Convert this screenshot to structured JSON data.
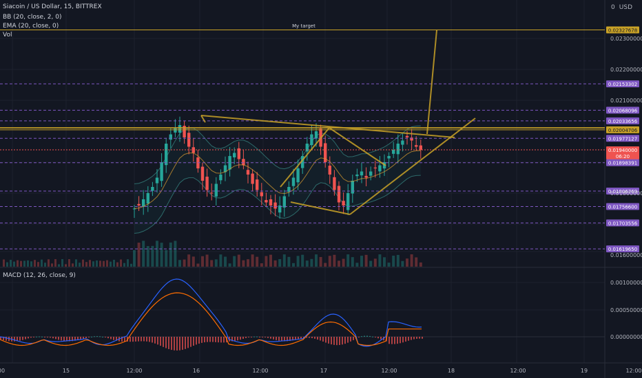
{
  "header": {
    "symbol": "Siacoin / US Dollar, 15, BITTREX",
    "bb": "BB (20, close, 2, 0)",
    "ema": "EMA (20, close, 0)",
    "vol": "Vol",
    "currency": "USD",
    "zero": "0"
  },
  "annotation": {
    "target": "My target"
  },
  "macd": {
    "title": "MACD (12, 26, close, 9)"
  },
  "chart_data": {
    "type": "candlestick",
    "price_axis": {
      "ticks": [
        "0.02300000",
        "0.02200000",
        "0.02100000",
        "0.01800000",
        "0.01600000"
      ],
      "levels": [
        {
          "value": "0.02327678",
          "kind": "target",
          "color": "#c9a227"
        },
        {
          "value": "0.02153302",
          "kind": "level",
          "color": "#7e57c2"
        },
        {
          "value": "0.02068096",
          "kind": "level",
          "color": "#7e57c2"
        },
        {
          "value": "0.02033656",
          "kind": "level",
          "color": "#7e57c2"
        },
        {
          "value": "0.02004706",
          "kind": "resistance",
          "color": "#c9a227"
        },
        {
          "value": "0.01977127",
          "kind": "level",
          "color": "#7e57c2"
        },
        {
          "value": "0.01940000",
          "kind": "last",
          "color": "#ef5350"
        },
        {
          "value": "0.01898391",
          "kind": "level",
          "color": "#7e57c2"
        },
        {
          "value": "0.01806769",
          "kind": "level",
          "color": "#7e57c2"
        },
        {
          "value": "0.01756600",
          "kind": "level",
          "color": "#7e57c2"
        },
        {
          "value": "0.01703556",
          "kind": "level",
          "color": "#7e57c2"
        },
        {
          "value": "0.01619650",
          "kind": "level",
          "color": "#7e57c2"
        }
      ],
      "countdown": "06:20"
    },
    "macd_axis": {
      "ticks": [
        "0.00100000",
        "0.00050000",
        "0.00000000"
      ]
    },
    "time_axis": [
      "00",
      "15",
      "12:00",
      "16",
      "12:00",
      "17",
      "12:00",
      "18",
      "12:00",
      "19",
      "12:00"
    ],
    "close_series": [
      0.0175,
      0.0176,
      0.0178,
      0.018,
      0.0182,
      0.0185,
      0.019,
      0.0196,
      0.0199,
      0.0201,
      0.0202,
      0.0198,
      0.0195,
      0.0193,
      0.0188,
      0.0184,
      0.0181,
      0.018,
      0.0183,
      0.0186,
      0.0189,
      0.0192,
      0.0193,
      0.0191,
      0.0189,
      0.0186,
      0.0183,
      0.0181,
      0.0179,
      0.0177,
      0.0176,
      0.0175,
      0.0176,
      0.0179,
      0.0182,
      0.0185,
      0.0188,
      0.0192,
      0.0196,
      0.0199,
      0.02,
      0.0195,
      0.019,
      0.0186,
      0.0181,
      0.0177,
      0.0176,
      0.018,
      0.0184,
      0.0186,
      0.0187,
      0.0185,
      0.0187,
      0.0188,
      0.0189,
      0.019,
      0.0192,
      0.0194,
      0.0196,
      0.0197,
      0.0198,
      0.0197,
      0.0195,
      0.0194
    ],
    "colors": {
      "up": "#26a69a",
      "down": "#ef5350",
      "bb": "#2d6a6a",
      "ema": "#e0a030",
      "trend": "#c9a227",
      "macd": "#2962ff",
      "signal": "#ff6d00"
    }
  }
}
